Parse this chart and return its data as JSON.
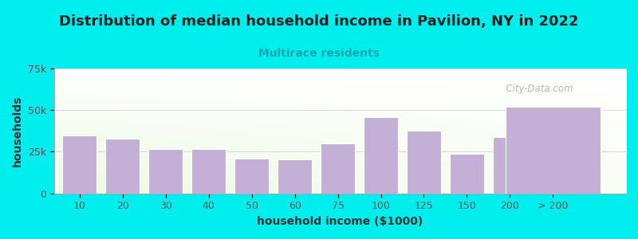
{
  "title": "Distribution of median household income in Pavilion, NY in 2022",
  "subtitle": "Multirace residents",
  "xlabel": "household income ($1000)",
  "ylabel": "households",
  "bg_outer": "#00EEEE",
  "bar_color": "#c4afd6",
  "bar_edge_color": "#ffffff",
  "categories": [
    "10",
    "20",
    "30",
    "40",
    "50",
    "60",
    "75",
    "100",
    "125",
    "150",
    "200",
    "> 200"
  ],
  "values": [
    35000,
    33000,
    26500,
    26500,
    21000,
    20500,
    30000,
    46000,
    37500,
    24000,
    34000,
    52000
  ],
  "bar_widths": [
    0.8,
    0.8,
    0.8,
    0.8,
    0.8,
    0.8,
    0.8,
    0.8,
    0.8,
    0.8,
    0.8,
    2.2
  ],
  "ylim": [
    0,
    75000
  ],
  "yticks": [
    0,
    25000,
    50000,
    75000
  ],
  "ytick_labels": [
    "0",
    "25k",
    "50k",
    "75k"
  ],
  "watermark": "City-Data.com",
  "title_fontsize": 13,
  "subtitle_fontsize": 10,
  "subtitle_color": "#00AAAA",
  "axis_label_color": "#333333",
  "axis_label_fontsize": 10,
  "tick_fontsize": 9,
  "tick_color": "#555555",
  "title_color": "#222222",
  "gradient_color_bottom": "#d8efc8",
  "gradient_color_top": "#f8fffe"
}
